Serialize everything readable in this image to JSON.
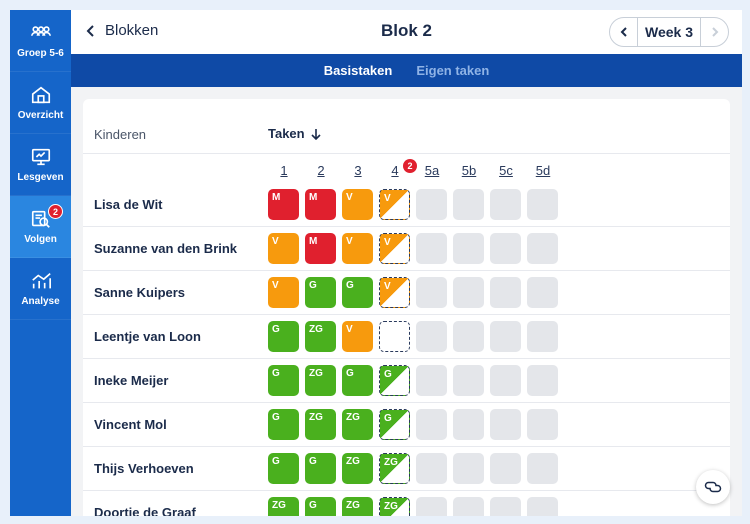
{
  "sidebar": {
    "items": [
      {
        "label": "Groep 5-6",
        "icon": "group-icon",
        "active": false
      },
      {
        "label": "Overzicht",
        "icon": "home-icon",
        "active": false
      },
      {
        "label": "Lesgeven",
        "icon": "teach-icon",
        "active": false
      },
      {
        "label": "Volgen",
        "icon": "follow-icon",
        "active": true,
        "badge": "2"
      },
      {
        "label": "Analyse",
        "icon": "chart-icon",
        "active": false
      }
    ]
  },
  "header": {
    "back_label": "Blokken",
    "title": "Blok 2",
    "week_label": "Week 3"
  },
  "tabs": [
    {
      "label": "Basistaken",
      "active": true
    },
    {
      "label": "Eigen taken",
      "active": false
    }
  ],
  "table": {
    "col_kinderen": "Kinderen",
    "col_taken": "Taken",
    "tasks": [
      "1",
      "2",
      "3",
      "4",
      "5a",
      "5b",
      "5c",
      "5d"
    ],
    "task4_badge": "2",
    "colors": {
      "M": "#e0202e",
      "V": "#f79a0d",
      "G": "#4ab01e",
      "ZG": "#4ab01e",
      "empty": "#e4e6ea"
    },
    "rows": [
      {
        "name": "Lisa de Wit",
        "cells": [
          "M",
          "M",
          "V",
          "V-half"
        ]
      },
      {
        "name": "Suzanne van den Brink",
        "cells": [
          "V",
          "M",
          "V",
          "V-half"
        ]
      },
      {
        "name": "Sanne Kuipers",
        "cells": [
          "V",
          "G",
          "G",
          "V-half"
        ]
      },
      {
        "name": "Leentje van Loon",
        "cells": [
          "G",
          "ZG",
          "V",
          "dashed"
        ]
      },
      {
        "name": "Ineke Meijer",
        "cells": [
          "G",
          "ZG",
          "G",
          "G-half"
        ]
      },
      {
        "name": "Vincent Mol",
        "cells": [
          "G",
          "ZG",
          "ZG",
          "G-half"
        ]
      },
      {
        "name": "Thijs Verhoeven",
        "cells": [
          "G",
          "G",
          "ZG",
          "ZG-half"
        ]
      },
      {
        "name": "Doortje de Graaf",
        "cells": [
          "ZG",
          "G",
          "ZG",
          "ZG-half"
        ]
      }
    ]
  }
}
